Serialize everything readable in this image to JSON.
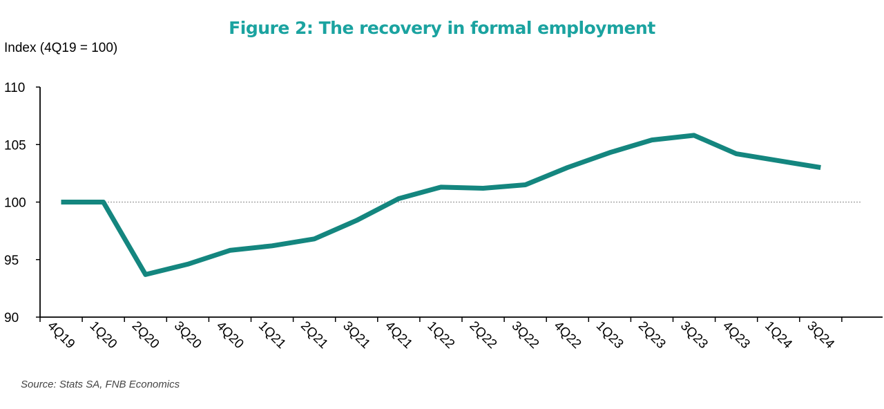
{
  "page": {
    "title": "Figure 2: The recovery in formal employment",
    "source": "Source: Stats SA, FNB Economics"
  },
  "chart_data": {
    "type": "line",
    "title": "Figure 2: The recovery in formal employment",
    "ylabel": "Index (4Q19 = 100)",
    "xlabel": "",
    "ylim": [
      90,
      110
    ],
    "yticks": [
      90,
      95,
      100,
      105,
      110
    ],
    "reference_line": 100,
    "grid": false,
    "legend": "none",
    "categories": [
      "4Q19",
      "1Q20",
      "2Q20",
      "3Q20",
      "4Q20",
      "1Q21",
      "2Q21",
      "3Q21",
      "4Q21",
      "1Q22",
      "2Q22",
      "3Q22",
      "4Q22",
      "1Q23",
      "2Q23",
      "3Q23",
      "4Q23",
      "1Q24",
      "3Q24"
    ],
    "series": [
      {
        "color": "#14867f",
        "values": [
          100.0,
          100.0,
          93.7,
          94.6,
          95.8,
          96.2,
          96.8,
          98.4,
          100.3,
          101.3,
          101.2,
          101.5,
          103.0,
          104.3,
          105.4,
          105.8,
          104.2,
          103.6,
          103.0
        ]
      }
    ]
  }
}
